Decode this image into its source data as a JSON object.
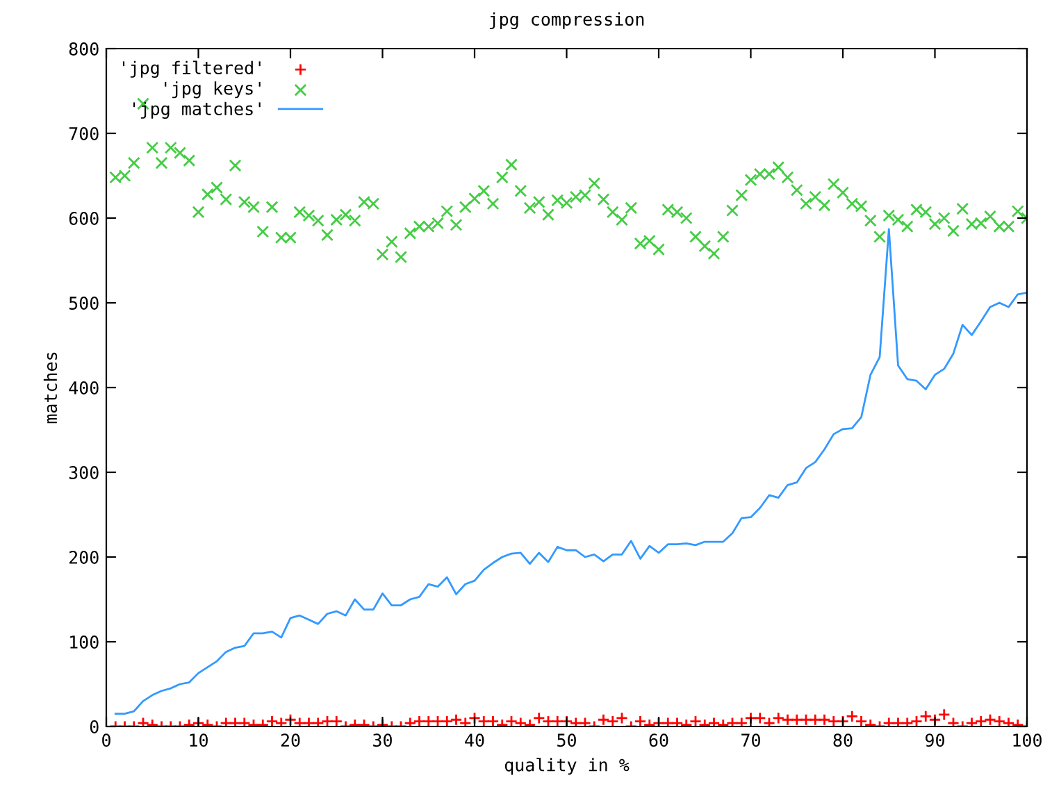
{
  "chart_data": {
    "type": "scatter",
    "title": "jpg compression",
    "xlabel": "quality in %",
    "ylabel": "matches",
    "x": [
      1,
      2,
      3,
      4,
      5,
      6,
      7,
      8,
      9,
      10,
      11,
      12,
      13,
      14,
      15,
      16,
      17,
      18,
      19,
      20,
      21,
      22,
      23,
      24,
      25,
      26,
      27,
      28,
      29,
      30,
      31,
      32,
      33,
      34,
      35,
      36,
      37,
      38,
      39,
      40,
      41,
      42,
      43,
      44,
      45,
      46,
      47,
      48,
      49,
      50,
      51,
      52,
      53,
      54,
      55,
      56,
      57,
      58,
      59,
      60,
      61,
      62,
      63,
      64,
      65,
      66,
      67,
      68,
      69,
      70,
      71,
      72,
      73,
      74,
      75,
      76,
      77,
      78,
      79,
      80,
      81,
      82,
      83,
      84,
      85,
      86,
      87,
      88,
      89,
      90,
      91,
      92,
      93,
      94,
      95,
      96,
      97,
      98,
      99,
      100
    ],
    "series": [
      {
        "name": "'jpg filtered'",
        "marker": "plus",
        "color": "#ff0000",
        "values": [
          0,
          0,
          0,
          4,
          2,
          0,
          0,
          0,
          2,
          4,
          2,
          0,
          4,
          4,
          4,
          2,
          2,
          6,
          4,
          8,
          4,
          4,
          4,
          6,
          6,
          0,
          2,
          2,
          0,
          2,
          0,
          0,
          4,
          6,
          6,
          6,
          6,
          8,
          4,
          10,
          6,
          6,
          2,
          6,
          4,
          2,
          10,
          6,
          6,
          6,
          4,
          4,
          0,
          8,
          6,
          10,
          0,
          6,
          2,
          4,
          4,
          4,
          2,
          6,
          2,
          4,
          2,
          4,
          4,
          10,
          10,
          4,
          10,
          8,
          8,
          8,
          8,
          8,
          6,
          6,
          12,
          6,
          2,
          0,
          4,
          4,
          4,
          6,
          12,
          8,
          14,
          4,
          0,
          4,
          6,
          8,
          6,
          4,
          2,
          0
        ]
      },
      {
        "name": "'jpg keys'",
        "marker": "cross",
        "color": "#44cc44",
        "values": [
          648,
          650,
          665,
          735,
          683,
          665,
          683,
          677,
          668,
          607,
          628,
          636,
          622,
          662,
          619,
          613,
          584,
          613,
          577,
          577,
          607,
          603,
          597,
          580,
          598,
          604,
          597,
          619,
          617,
          557,
          572,
          554,
          582,
          590,
          590,
          594,
          608,
          592,
          613,
          623,
          632,
          617,
          648,
          663,
          632,
          612,
          619,
          604,
          621,
          618,
          625,
          627,
          641,
          622,
          607,
          598,
          612,
          570,
          573,
          563,
          610,
          607,
          600,
          578,
          567,
          558,
          578,
          609,
          627,
          645,
          652,
          652,
          660,
          648,
          633,
          617,
          625,
          615,
          640,
          630,
          617,
          614,
          597,
          578,
          603,
          598,
          590,
          610,
          607,
          593,
          600,
          585,
          611,
          593,
          594,
          602,
          590,
          590,
          608,
          600
        ]
      },
      {
        "name": "'jpg matches'",
        "type": "line",
        "marker": "none",
        "color": "#3399ff",
        "values": [
          15,
          15,
          18,
          30,
          37,
          42,
          45,
          50,
          52,
          63,
          70,
          77,
          88,
          93,
          95,
          110,
          110,
          112,
          105,
          128,
          131,
          126,
          121,
          133,
          136,
          131,
          150,
          138,
          138,
          157,
          143,
          143,
          150,
          153,
          168,
          165,
          176,
          156,
          168,
          172,
          185,
          193,
          200,
          204,
          205,
          192,
          205,
          194,
          212,
          208,
          208,
          200,
          203,
          195,
          203,
          203,
          219,
          198,
          213,
          205,
          215,
          215,
          216,
          214,
          218,
          218,
          218,
          228,
          246,
          247,
          258,
          273,
          270,
          285,
          288,
          305,
          312,
          327,
          345,
          351,
          352,
          365,
          415,
          436,
          587,
          426,
          410,
          408,
          398,
          415,
          422,
          440,
          474,
          462,
          478,
          495,
          500,
          495,
          510,
          512
        ]
      }
    ],
    "xlim": [
      0,
      100
    ],
    "xticks": [
      0,
      10,
      20,
      30,
      40,
      50,
      60,
      70,
      80,
      90,
      100
    ],
    "ylim": [
      0,
      800
    ],
    "yticks": [
      0,
      100,
      200,
      300,
      400,
      500,
      600,
      700,
      800
    ],
    "grid": false,
    "legend": "top left"
  }
}
